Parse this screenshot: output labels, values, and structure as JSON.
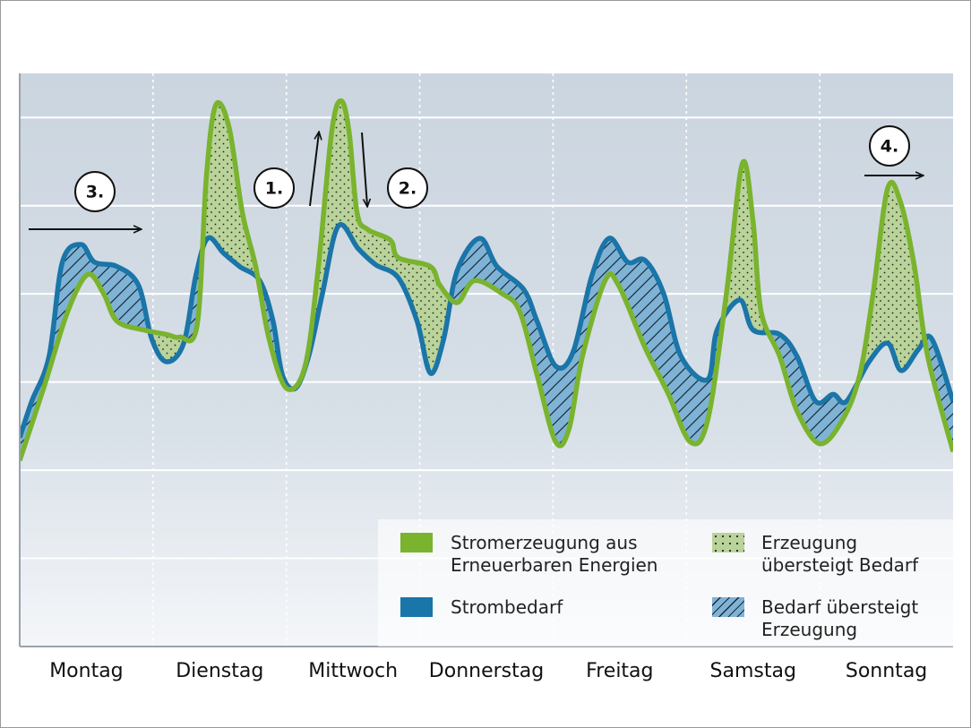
{
  "chart_data": {
    "type": "line",
    "categories": [
      "Montag",
      "Dienstag",
      "Mittwoch",
      "Donnerstag",
      "Freitag",
      "Samstag",
      "Sonntag"
    ],
    "xlim": [
      0,
      7
    ],
    "xticks": [
      1,
      2,
      3,
      4,
      5,
      6
    ],
    "ylim": [
      0,
      6.5
    ],
    "yticks": [
      1,
      2,
      3,
      4,
      5,
      6
    ],
    "grid": true,
    "series": [
      {
        "name": "Stromerzeugung aus Erneuerbaren Energien",
        "color": "#7ab32e",
        "x": [
          0,
          0.19,
          0.36,
          0.51,
          0.63,
          0.73,
          0.93,
          1.1,
          1.2,
          1.33,
          1.4,
          1.47,
          1.57,
          1.67,
          1.77,
          1.87,
          2.0,
          2.14,
          2.24,
          2.34,
          2.41,
          2.47,
          2.53,
          2.61,
          2.78,
          2.84,
          3.08,
          3.15,
          3.28,
          3.41,
          3.62,
          3.75,
          3.88,
          4.02,
          4.12,
          4.22,
          4.39,
          4.49,
          4.69,
          4.86,
          5.03,
          5.16,
          5.3,
          5.42,
          5.5,
          5.56,
          5.7,
          5.83,
          6.0,
          6.17,
          6.3,
          6.4,
          6.51,
          6.61,
          6.71,
          6.81,
          7.0
        ],
        "values": [
          2.11,
          2.98,
          3.8,
          4.22,
          4.0,
          3.69,
          3.59,
          3.54,
          3.51,
          3.64,
          5.33,
          6.14,
          5.89,
          4.92,
          4.31,
          3.49,
          2.93,
          3.18,
          4.31,
          5.84,
          6.19,
          5.84,
          4.92,
          4.73,
          4.61,
          4.41,
          4.31,
          4.1,
          3.9,
          4.15,
          4.0,
          3.8,
          3.08,
          2.32,
          2.47,
          3.29,
          4.15,
          4.1,
          3.39,
          2.88,
          2.32,
          2.57,
          4.0,
          5.48,
          4.82,
          3.8,
          3.29,
          2.67,
          2.3,
          2.57,
          3.08,
          4.0,
          5.2,
          5.02,
          4.31,
          3.29,
          2.21
        ]
      },
      {
        "name": "Strombedarf",
        "color": "#1a75a8",
        "x": [
          0,
          0.09,
          0.22,
          0.32,
          0.46,
          0.56,
          0.73,
          0.89,
          0.99,
          1.1,
          1.23,
          1.32,
          1.41,
          1.53,
          1.65,
          1.8,
          1.9,
          1.97,
          2.07,
          2.17,
          2.27,
          2.39,
          2.54,
          2.67,
          2.84,
          2.98,
          3.08,
          3.18,
          3.28,
          3.45,
          3.58,
          3.78,
          3.88,
          4.02,
          4.15,
          4.29,
          4.42,
          4.56,
          4.69,
          4.83,
          4.96,
          5.16,
          5.23,
          5.4,
          5.5,
          5.7,
          5.83,
          5.97,
          6.1,
          6.2,
          6.37,
          6.51,
          6.61,
          6.74,
          6.84,
          7.0
        ],
        "values": [
          2.37,
          2.78,
          3.29,
          4.36,
          4.56,
          4.36,
          4.31,
          4.1,
          3.49,
          3.23,
          3.44,
          4.2,
          4.63,
          4.46,
          4.31,
          4.15,
          3.69,
          3.08,
          2.93,
          3.31,
          4.0,
          4.77,
          4.51,
          4.33,
          4.18,
          3.69,
          3.1,
          3.49,
          4.26,
          4.63,
          4.31,
          4.05,
          3.69,
          3.18,
          3.34,
          4.2,
          4.63,
          4.36,
          4.38,
          4.0,
          3.29,
          3.03,
          3.59,
          3.93,
          3.59,
          3.54,
          3.29,
          2.78,
          2.86,
          2.78,
          3.23,
          3.44,
          3.13,
          3.37,
          3.49,
          2.78
        ]
      }
    ],
    "fill_legend": [
      {
        "name": "Erzeugung übersteigt Bedarf",
        "color": "#b9d39a"
      },
      {
        "name": "Bedarf übersteigt Erzeugung",
        "color": "#7fb3d5"
      }
    ],
    "annotations": [
      "1.",
      "2.",
      "3.",
      "4."
    ]
  }
}
